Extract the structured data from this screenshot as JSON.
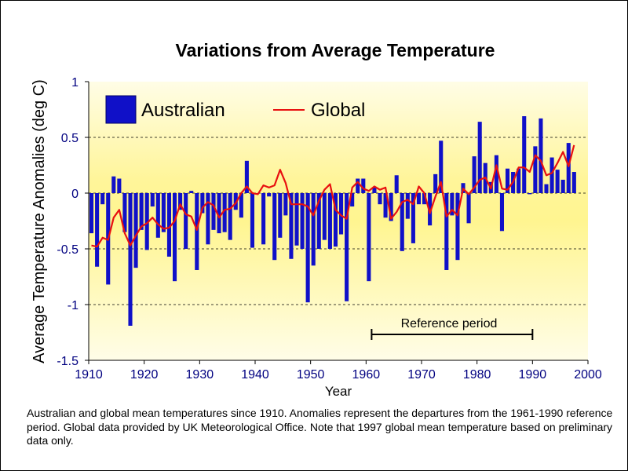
{
  "caption": "Australian and global mean temperatures since 1910. Anomalies represent the departures from the 1961-1990 reference period. Global data provided by UK Meteorological Office. Note that 1997 global mean temperature based on preliminary data only.",
  "chart_data": {
    "type": "bar",
    "title": "Variations from Average Temperature",
    "xlabel": "Year",
    "ylabel": "Average Temperature Anomalies (deg C)",
    "xlim": [
      1910,
      2000
    ],
    "ylim": [
      -1.5,
      1
    ],
    "x_ticks": [
      1910,
      1920,
      1930,
      1940,
      1950,
      1960,
      1970,
      1980,
      1990,
      2000
    ],
    "y_ticks": [
      1,
      0.5,
      0,
      -0.5,
      -1,
      -1.5
    ],
    "y_tick_labels": [
      "1",
      "0.5",
      "0",
      "-0.5",
      "-1",
      "-1.5"
    ],
    "grid": "horizontal dashed",
    "legend_position": "top-left",
    "colors": {
      "australian": "#1010c8",
      "global": "#e81010",
      "plot_top": "#fffde6",
      "plot_mid": "#fff59a",
      "axis": "#000000",
      "tick_labels": "#000080"
    },
    "reference_period": {
      "label": "Reference period",
      "start": 1961,
      "end": 1990
    },
    "x": [
      1910,
      1911,
      1912,
      1913,
      1914,
      1915,
      1916,
      1917,
      1918,
      1919,
      1920,
      1921,
      1922,
      1923,
      1924,
      1925,
      1926,
      1927,
      1928,
      1929,
      1930,
      1931,
      1932,
      1933,
      1934,
      1935,
      1936,
      1937,
      1938,
      1939,
      1940,
      1941,
      1942,
      1943,
      1944,
      1945,
      1946,
      1947,
      1948,
      1949,
      1950,
      1951,
      1952,
      1953,
      1954,
      1955,
      1956,
      1957,
      1958,
      1959,
      1960,
      1961,
      1962,
      1963,
      1964,
      1965,
      1966,
      1967,
      1968,
      1969,
      1970,
      1971,
      1972,
      1973,
      1974,
      1975,
      1976,
      1977,
      1978,
      1979,
      1980,
      1981,
      1982,
      1983,
      1984,
      1985,
      1986,
      1987,
      1988,
      1989,
      1990,
      1991,
      1992,
      1993,
      1994,
      1995,
      1996,
      1997
    ],
    "series": [
      {
        "name": "Australian",
        "type": "bar",
        "values": [
          -0.36,
          -0.66,
          -0.1,
          -0.82,
          0.15,
          0.13,
          -0.35,
          -1.19,
          -0.67,
          -0.33,
          -0.51,
          -0.12,
          -0.4,
          -0.35,
          -0.57,
          -0.79,
          -0.15,
          -0.5,
          0.02,
          -0.69,
          -0.18,
          -0.46,
          -0.33,
          -0.36,
          -0.35,
          -0.42,
          -0.15,
          -0.22,
          0.29,
          -0.49,
          0.0,
          -0.46,
          -0.03,
          -0.6,
          -0.4,
          -0.2,
          -0.59,
          -0.47,
          -0.5,
          -0.98,
          -0.65,
          -0.5,
          -0.42,
          -0.5,
          -0.48,
          -0.37,
          -0.97,
          -0.12,
          0.13,
          0.13,
          -0.79,
          0.05,
          -0.1,
          -0.22,
          -0.25,
          0.16,
          -0.52,
          -0.23,
          -0.45,
          -0.1,
          -0.1,
          -0.29,
          0.17,
          0.47,
          -0.69,
          -0.2,
          -0.6,
          0.09,
          -0.27,
          0.33,
          0.64,
          0.27,
          0.1,
          0.34,
          -0.34,
          0.22,
          0.19,
          0.22,
          0.69,
          -0.01,
          0.42,
          0.67,
          0.08,
          0.32,
          0.21,
          0.12,
          0.45,
          0.19
        ]
      },
      {
        "name": "Global",
        "type": "line",
        "values": [
          -0.47,
          -0.48,
          -0.4,
          -0.42,
          -0.22,
          -0.15,
          -0.36,
          -0.47,
          -0.38,
          -0.3,
          -0.27,
          -0.22,
          -0.28,
          -0.32,
          -0.31,
          -0.25,
          -0.1,
          -0.19,
          -0.21,
          -0.33,
          -0.13,
          -0.08,
          -0.11,
          -0.22,
          -0.15,
          -0.14,
          -0.09,
          0.0,
          0.06,
          0.0,
          -0.01,
          0.07,
          0.05,
          0.07,
          0.21,
          0.09,
          -0.1,
          -0.1,
          -0.1,
          -0.12,
          -0.2,
          -0.07,
          0.03,
          0.08,
          -0.15,
          -0.2,
          -0.23,
          0.05,
          0.1,
          0.04,
          0.02,
          0.06,
          0.03,
          0.05,
          -0.23,
          -0.17,
          -0.08,
          -0.06,
          -0.1,
          0.06,
          0.0,
          -0.18,
          -0.03,
          0.1,
          -0.21,
          -0.15,
          -0.2,
          0.04,
          -0.01,
          0.05,
          0.12,
          0.14,
          0.04,
          0.25,
          0.04,
          0.03,
          0.1,
          0.23,
          0.23,
          0.19,
          0.34,
          0.29,
          0.16,
          0.18,
          0.27,
          0.37,
          0.24,
          0.43
        ]
      }
    ]
  }
}
